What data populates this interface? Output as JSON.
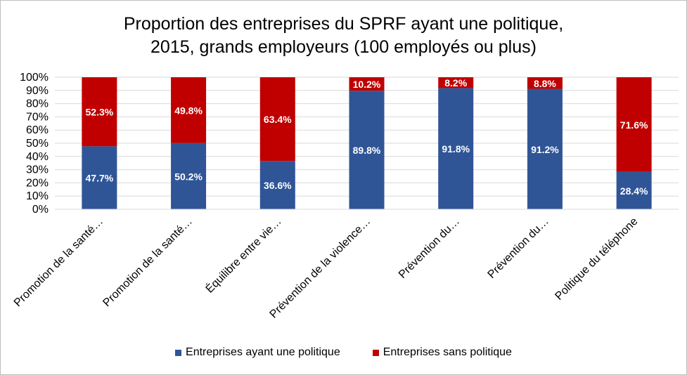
{
  "chart_data": {
    "type": "bar",
    "stacked": true,
    "title": [
      "Proportion des entreprises du SPRF ayant une politique,",
      "2015, grands employeurs (100 employés ou plus)"
    ],
    "categories": [
      "Promotion de la santé…",
      "Promotion de la santé…",
      "Équilibre entre vie…",
      "Prévention de la violence…",
      "Prévention du…",
      "Prévention du…",
      "Politique du téléphone"
    ],
    "series": [
      {
        "name": "Entreprises ayant une politique",
        "color": "#2f5597",
        "values": [
          47.7,
          50.2,
          36.6,
          89.8,
          91.8,
          91.2,
          28.4
        ],
        "labels": [
          "47.7%",
          "50.2%",
          "36.6%",
          "89.8%",
          "91.8%",
          "91.2%",
          "28.4%"
        ]
      },
      {
        "name": "Entreprises sans politique",
        "color": "#c00000",
        "values": [
          52.3,
          49.8,
          63.4,
          10.2,
          8.2,
          8.8,
          71.6
        ],
        "labels": [
          "52.3%",
          "49.8%",
          "63.4%",
          "10.2%",
          "8.2%",
          "8.8%",
          "71.6%"
        ]
      }
    ],
    "yticks": [
      "0%",
      "10%",
      "20%",
      "30%",
      "40%",
      "50%",
      "60%",
      "70%",
      "80%",
      "90%",
      "100%"
    ],
    "ylim": [
      0,
      100
    ],
    "grid": true,
    "legend": "bottom"
  }
}
